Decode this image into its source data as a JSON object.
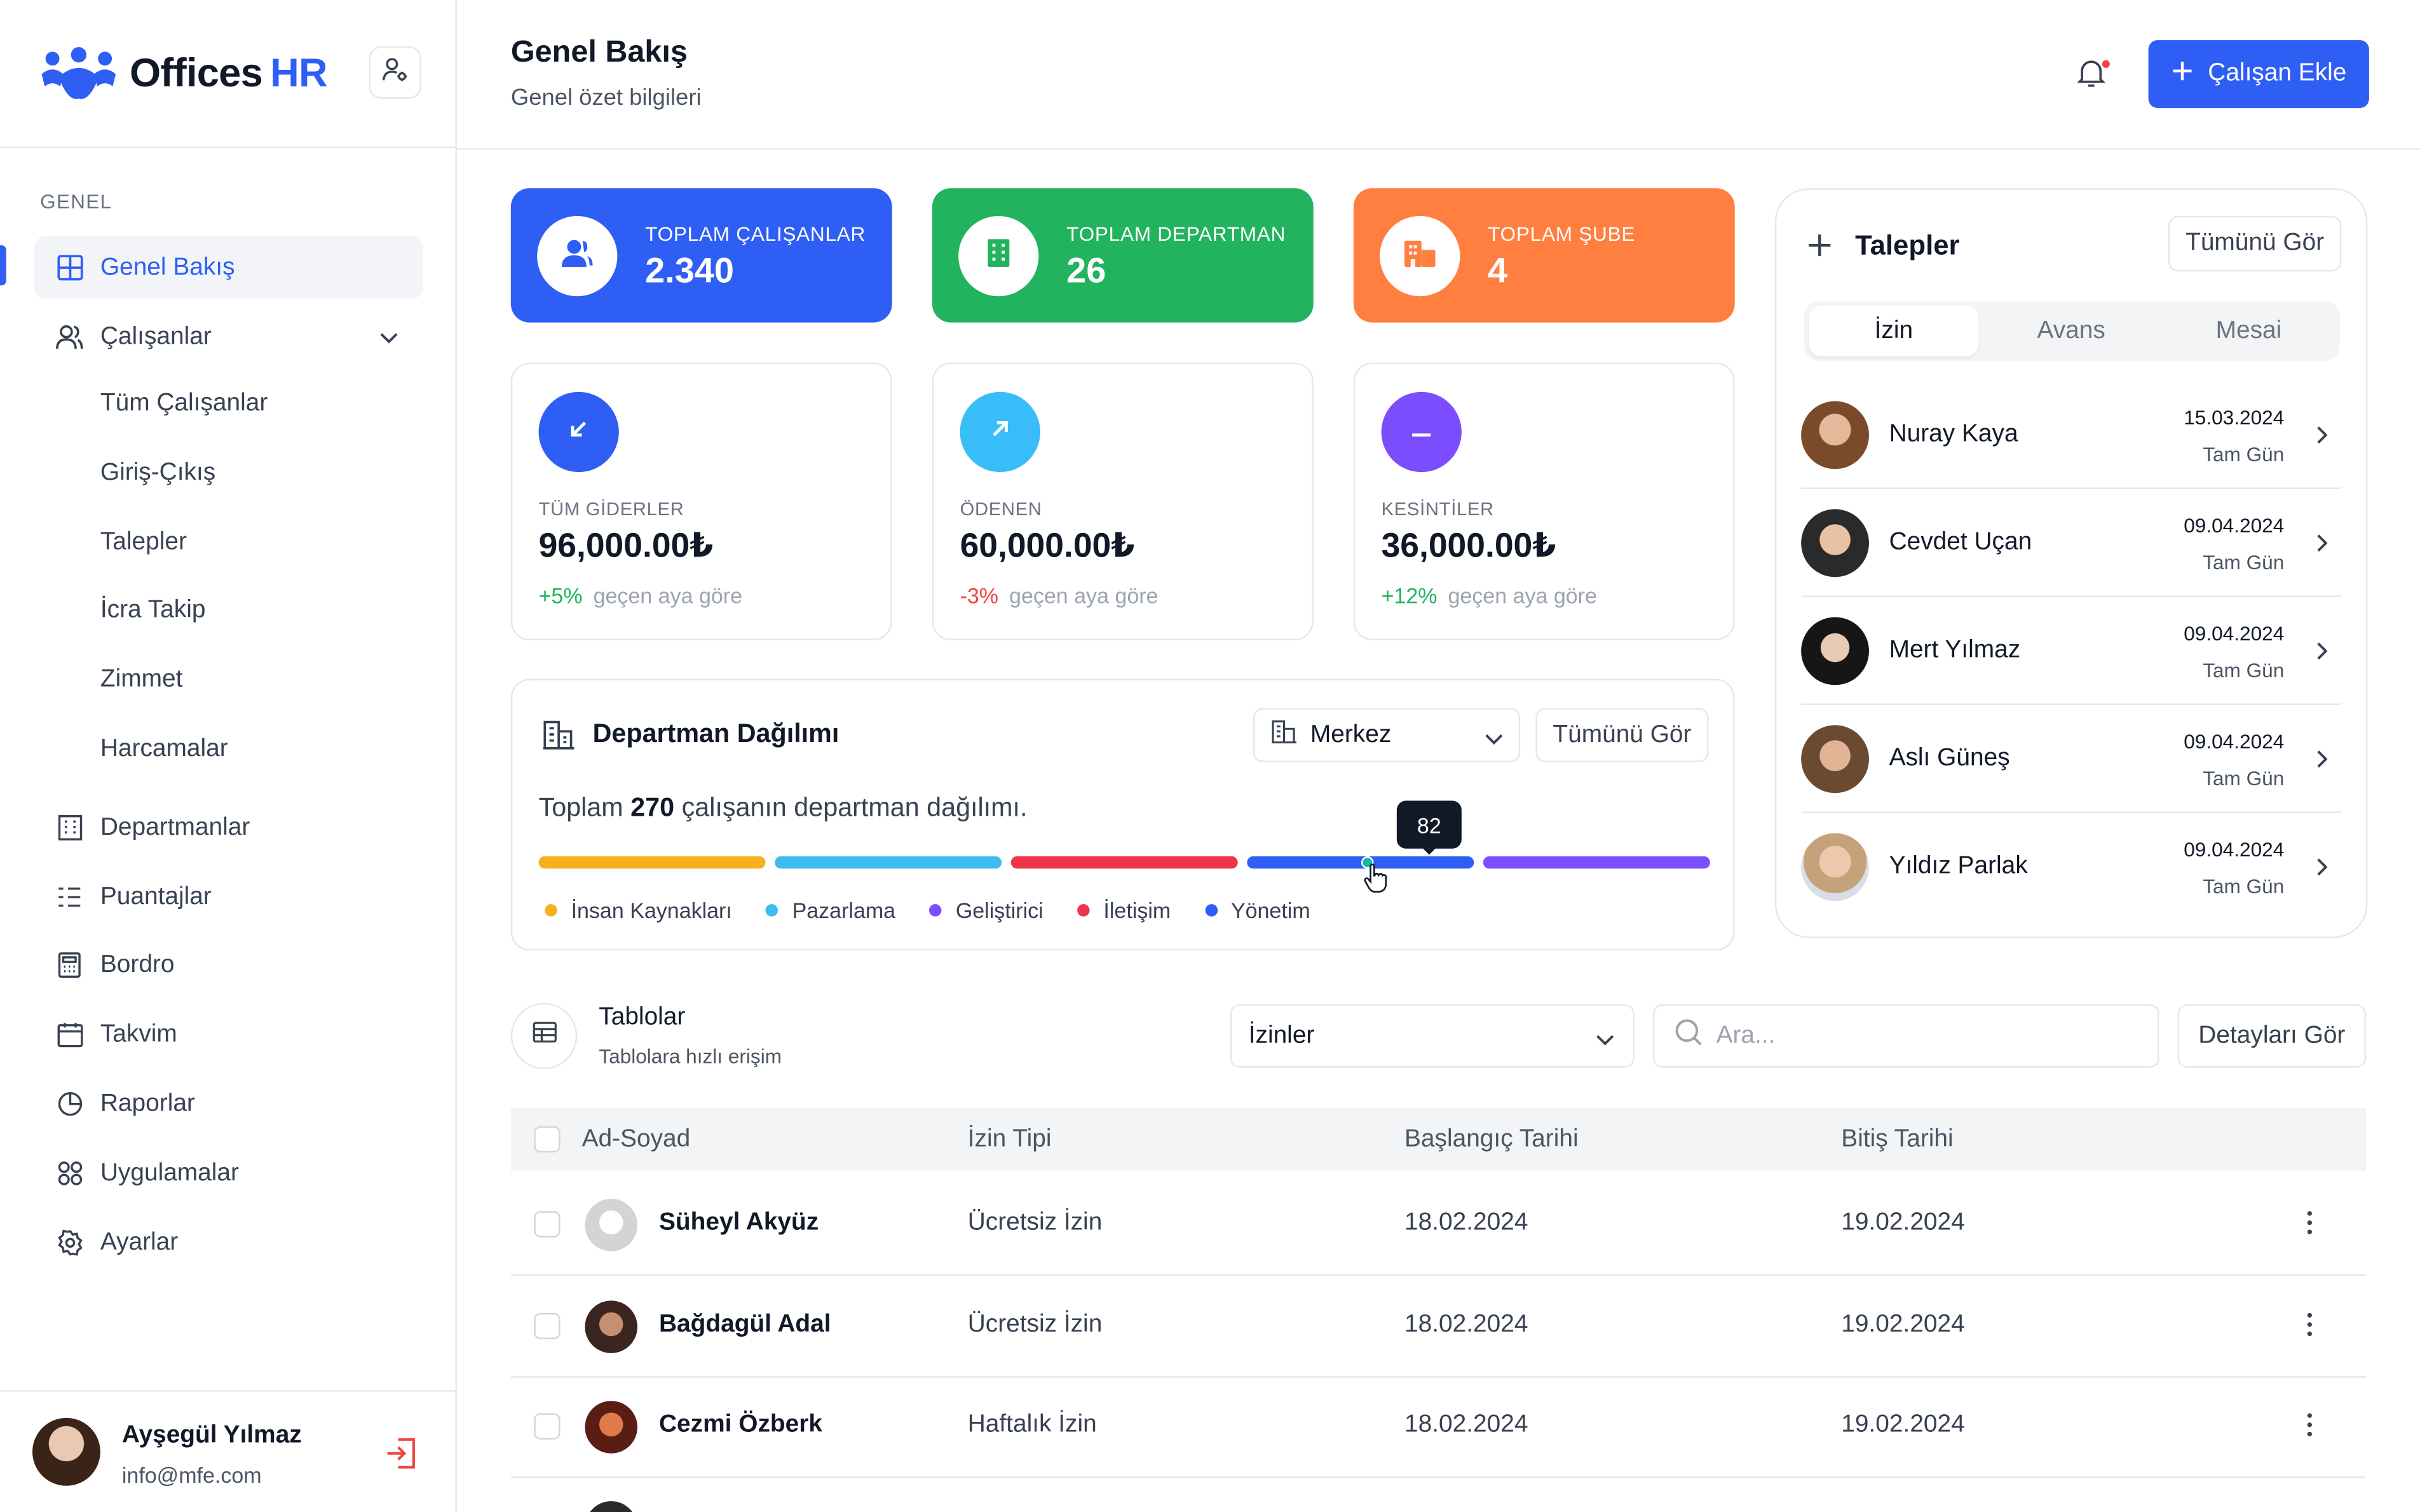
{
  "brand": {
    "name": "Offices",
    "suffix": "HR",
    "accent": "#2f5ef5"
  },
  "sidebar": {
    "section": "GENEL",
    "items": [
      {
        "label": "Genel Bakış",
        "icon": "grid-icon",
        "active": true
      },
      {
        "label": "Çalışanlar",
        "icon": "users-icon",
        "expanded": true,
        "children": [
          "Tüm Çalışanlar",
          "Giriş-Çıkış",
          "Talepler",
          "İcra Takip",
          "Zimmet",
          "Harcamalar"
        ]
      },
      {
        "label": "Departmanlar",
        "icon": "building-icon"
      },
      {
        "label": "Puantajlar",
        "icon": "checklist-icon"
      },
      {
        "label": "Bordro",
        "icon": "calculator-icon"
      },
      {
        "label": "Takvim",
        "icon": "calendar-icon"
      },
      {
        "label": "Raporlar",
        "icon": "pie-chart-icon"
      },
      {
        "label": "Uygulamalar",
        "icon": "apps-icon"
      },
      {
        "label": "Ayarlar",
        "icon": "settings-icon"
      }
    ],
    "user": {
      "name": "Ayşegül Yılmaz",
      "email": "info@mfe.com"
    }
  },
  "header": {
    "title": "Genel Bakış",
    "subtitle": "Genel özet bilgileri",
    "add_button": "Çalışan Ekle"
  },
  "stats": [
    {
      "label": "TOPLAM ÇALIŞANLAR",
      "value": "2.340",
      "color": "#2f5ef5",
      "icon": "users-icon"
    },
    {
      "label": "TOPLAM DEPARTMAN",
      "value": "26",
      "color": "#22b35e",
      "icon": "building-icon"
    },
    {
      "label": "TOPLAM ŞUBE",
      "value": "4",
      "color": "#ff7f40",
      "icon": "branch-icon"
    }
  ],
  "finance": [
    {
      "label": "TÜM GİDERLER",
      "value": "96,000.00₺",
      "change": "+5%",
      "compare": "geçen aya göre",
      "color": "#2f5ef5",
      "change_color": "#22b35e",
      "icon": "arrow-down-left-icon"
    },
    {
      "label": "ÖDENEN",
      "value": "60,000.00₺",
      "change": "-3%",
      "compare": "geçen aya göre",
      "color": "#38bdf8",
      "change_color": "#ef4444",
      "icon": "arrow-up-right-icon"
    },
    {
      "label": "KESİNTİLER",
      "value": "36,000.00₺",
      "change": "+12%",
      "compare": "geçen aya göre",
      "color": "#7c4dff",
      "change_color": "#22b35e",
      "icon": "minus-icon"
    }
  ],
  "department": {
    "title": "Departman Dağılımı",
    "select": "Merkez",
    "view_all": "Tümünü Gör",
    "text_before": "Toplam",
    "total": "270",
    "text_after": "çalışanın departman dağılımı.",
    "tooltip": "82",
    "segments": [
      {
        "color": "#f5b01f"
      },
      {
        "color": "#3dbcf0"
      },
      {
        "color": "#ee334a"
      },
      {
        "color": "#2f5ef5"
      },
      {
        "color": "#7c4dff"
      }
    ],
    "legend": [
      {
        "label": "İnsan Kaynakları",
        "color": "#f5b01f"
      },
      {
        "label": "Pazarlama",
        "color": "#3dbcf0"
      },
      {
        "label": "Geliştirici",
        "color": "#7c4dff"
      },
      {
        "label": "İletişim",
        "color": "#ee334a"
      },
      {
        "label": "Yönetim",
        "color": "#2f5ef5"
      }
    ]
  },
  "requests": {
    "title": "Talepler",
    "view_all": "Tümünü Gör",
    "tabs": [
      "İzin",
      "Avans",
      "Mesai"
    ],
    "active_tab": 0,
    "items": [
      {
        "name": "Nuray Kaya",
        "date": "15.03.2024",
        "type": "Tam Gün"
      },
      {
        "name": "Cevdet Uçan",
        "date": "09.04.2024",
        "type": "Tam Gün"
      },
      {
        "name": "Mert Yılmaz",
        "date": "09.04.2024",
        "type": "Tam Gün"
      },
      {
        "name": "Aslı Güneş",
        "date": "09.04.2024",
        "type": "Tam Gün"
      },
      {
        "name": "Yıldız Parlak",
        "date": "09.04.2024",
        "type": "Tam Gün"
      }
    ]
  },
  "tables": {
    "title": "Tablolar",
    "subtitle": "Tablolara hızlı erişim",
    "select": "İzinler",
    "search_placeholder": "Ara...",
    "details_button": "Detayları Gör",
    "columns": [
      "Ad-Soyad",
      "İzin Tipi",
      "Başlangıç Tarihi",
      "Bitiş Tarihi"
    ],
    "rows": [
      {
        "name": "Süheyl Akyüz",
        "type": "Ücretsiz İzin",
        "start": "18.02.2024",
        "end": "19.02.2024"
      },
      {
        "name": "Bağdagül Adal",
        "type": "Ücretsiz İzin",
        "start": "18.02.2024",
        "end": "19.02.2024"
      },
      {
        "name": "Cezmi Özberk",
        "type": "Haftalık İzin",
        "start": "18.02.2024",
        "end": "19.02.2024"
      }
    ]
  }
}
